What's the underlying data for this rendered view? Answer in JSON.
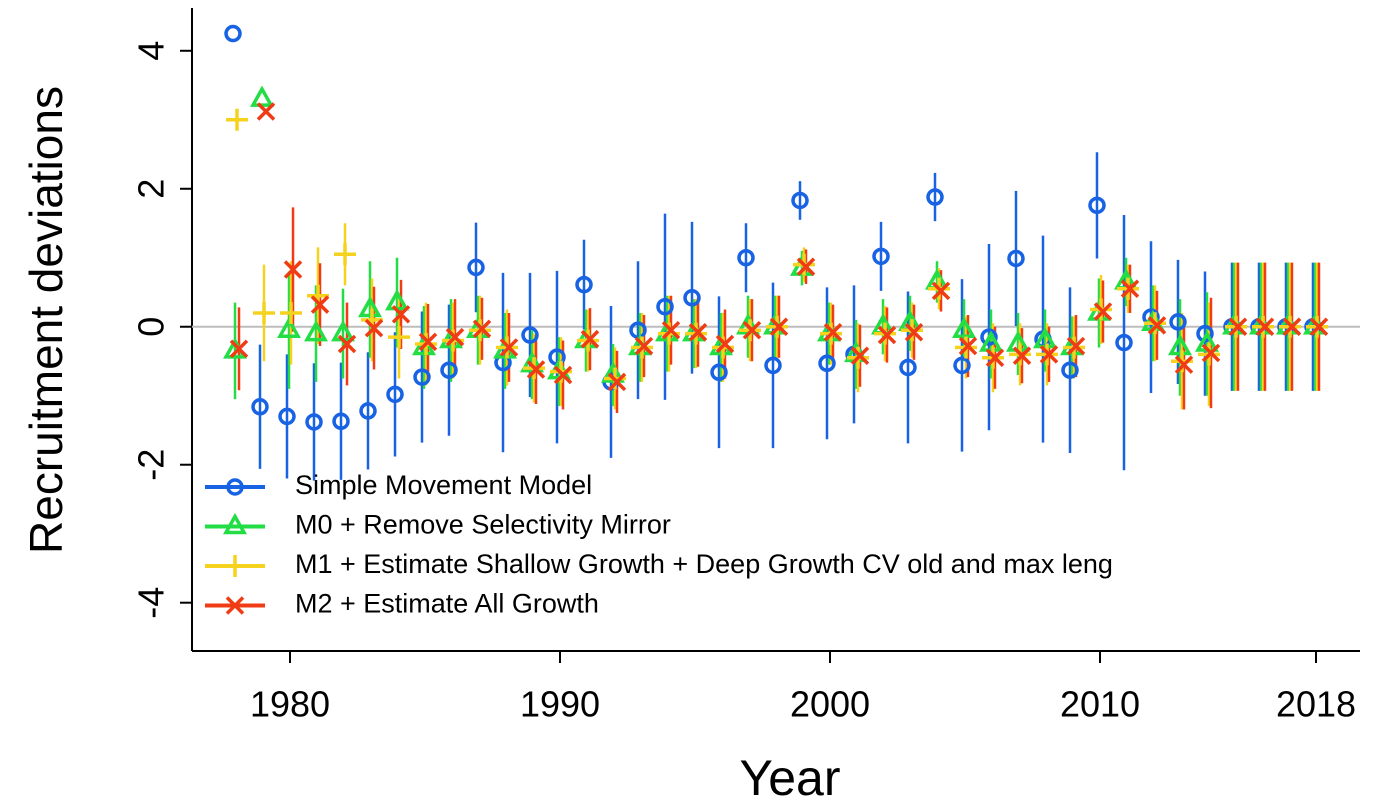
{
  "chart_data": {
    "type": "errorbar",
    "x_label": "Year",
    "y_label": "Recruitment deviations",
    "x": [
      1978,
      1979,
      1980,
      1981,
      1982,
      1983,
      1984,
      1985,
      1986,
      1987,
      1988,
      1989,
      1990,
      1991,
      1992,
      1993,
      1994,
      1995,
      1996,
      1997,
      1998,
      1999,
      2000,
      2001,
      2002,
      2003,
      2004,
      2005,
      2006,
      2007,
      2008,
      2009,
      2010,
      2011,
      2012,
      2013,
      2014,
      2015,
      2016,
      2017,
      2018
    ],
    "xlim": [
      1976.37,
      2019.63
    ],
    "xticks": [
      1980,
      1990,
      2000,
      2010,
      2018
    ],
    "ylim": [
      -4.7,
      4.62
    ],
    "yticks": [
      -4,
      -2,
      0,
      2,
      4
    ],
    "reference_line": 0,
    "legend_position": "bottomleft",
    "series": [
      {
        "name": "Simple Movement Model",
        "color": "#1862e4",
        "marker": "circle",
        "values": [
          4.25,
          -1.16,
          -1.3,
          -1.38,
          -1.37,
          -1.22,
          -0.98,
          -0.73,
          -0.63,
          0.86,
          -0.52,
          -0.12,
          -0.44,
          0.61,
          -0.8,
          -0.05,
          0.29,
          0.42,
          -0.66,
          1.0,
          -0.56,
          1.83,
          -0.53,
          -0.4,
          1.02,
          -0.59,
          1.88,
          -0.56,
          -0.15,
          0.99,
          -0.18,
          -0.63,
          1.76,
          -0.23,
          0.14,
          0.07,
          -0.1,
          0,
          0,
          0,
          0
        ],
        "errors": [
          null,
          0.9,
          0.9,
          0.85,
          0.85,
          0.85,
          0.9,
          0.95,
          0.95,
          0.65,
          1.3,
          0.9,
          1.25,
          0.65,
          1.1,
          1.0,
          1.35,
          1.1,
          1.1,
          0.5,
          1.2,
          0.28,
          1.1,
          1.0,
          0.5,
          1.1,
          0.35,
          1.25,
          1.35,
          0.98,
          1.5,
          1.2,
          0.77,
          1.85,
          1.1,
          0.9,
          0.9,
          0.93,
          0.93,
          0.93,
          0.93
        ]
      },
      {
        "name": "M0 + Remove Selectivity Mirror",
        "color": "#22dd44",
        "marker": "triangle",
        "values": [
          -0.35,
          3.3,
          -0.05,
          -0.1,
          -0.1,
          0.25,
          0.35,
          -0.3,
          -0.2,
          -0.05,
          -0.35,
          -0.55,
          -0.65,
          -0.2,
          -0.7,
          -0.3,
          -0.1,
          -0.1,
          -0.3,
          0,
          0,
          0.85,
          -0.1,
          -0.4,
          0,
          0.05,
          0.65,
          -0.05,
          -0.25,
          -0.25,
          -0.2,
          -0.3,
          0.2,
          0.65,
          0.05,
          -0.3,
          -0.25,
          0,
          0,
          0,
          0
        ],
        "errors": [
          0.7,
          null,
          0.85,
          0.7,
          0.65,
          0.7,
          0.65,
          0.6,
          0.6,
          0.5,
          0.55,
          0.5,
          0.5,
          0.45,
          0.45,
          0.5,
          0.55,
          0.5,
          0.5,
          0.45,
          0.45,
          0.25,
          0.45,
          0.5,
          0.4,
          0.4,
          0.3,
          0.45,
          0.5,
          0.45,
          0.45,
          0.45,
          0.5,
          0.35,
          0.55,
          0.7,
          0.75,
          0.93,
          0.93,
          0.93,
          0.93
        ]
      },
      {
        "name": "M1 + Estimate Shallow Growth + Deep Growth CV old and max leng",
        "color": "#f5d21e",
        "marker": "plus",
        "values": [
          3.0,
          0.2,
          0.2,
          0.45,
          1.05,
          0.1,
          -0.15,
          -0.25,
          -0.2,
          -0.05,
          -0.3,
          -0.6,
          -0.65,
          -0.2,
          -0.75,
          -0.3,
          -0.1,
          -0.1,
          -0.3,
          -0.05,
          0,
          0.9,
          -0.1,
          -0.45,
          -0.1,
          -0.05,
          0.55,
          -0.3,
          -0.45,
          -0.4,
          -0.4,
          -0.3,
          0.25,
          0.55,
          0.05,
          -0.5,
          -0.4,
          0,
          0,
          0,
          0
        ],
        "errors": [
          null,
          0.7,
          0.75,
          0.7,
          0.45,
          0.6,
          0.6,
          0.6,
          0.55,
          0.5,
          0.55,
          0.5,
          0.5,
          0.45,
          0.45,
          0.5,
          0.55,
          0.5,
          0.5,
          0.45,
          0.45,
          0.25,
          0.45,
          0.5,
          0.4,
          0.4,
          0.3,
          0.45,
          0.5,
          0.45,
          0.45,
          0.45,
          0.5,
          0.35,
          0.55,
          0.7,
          0.75,
          0.93,
          0.93,
          0.93,
          0.93
        ]
      },
      {
        "name": "M2 + Estimate All Growth",
        "color": "#f03c14",
        "marker": "cross",
        "values": [
          -0.32,
          3.12,
          0.83,
          0.32,
          -0.25,
          -0.02,
          0.18,
          -0.22,
          -0.15,
          -0.03,
          -0.3,
          -0.62,
          -0.7,
          -0.18,
          -0.8,
          -0.28,
          -0.05,
          -0.08,
          -0.25,
          -0.05,
          0,
          0.87,
          -0.08,
          -0.42,
          -0.12,
          -0.08,
          0.52,
          -0.28,
          -0.45,
          -0.42,
          -0.4,
          -0.28,
          0.22,
          0.55,
          0.02,
          -0.55,
          -0.38,
          0,
          0,
          0,
          0
        ],
        "errors": [
          0.6,
          null,
          0.9,
          0.6,
          0.6,
          0.6,
          0.5,
          0.55,
          0.55,
          0.45,
          0.5,
          0.5,
          0.5,
          0.45,
          0.45,
          0.45,
          0.5,
          0.5,
          0.5,
          0.45,
          0.45,
          0.25,
          0.4,
          0.45,
          0.4,
          0.4,
          0.3,
          0.45,
          0.45,
          0.4,
          0.4,
          0.45,
          0.45,
          0.35,
          0.5,
          0.65,
          0.8,
          0.93,
          0.93,
          0.93,
          0.93
        ]
      }
    ]
  }
}
